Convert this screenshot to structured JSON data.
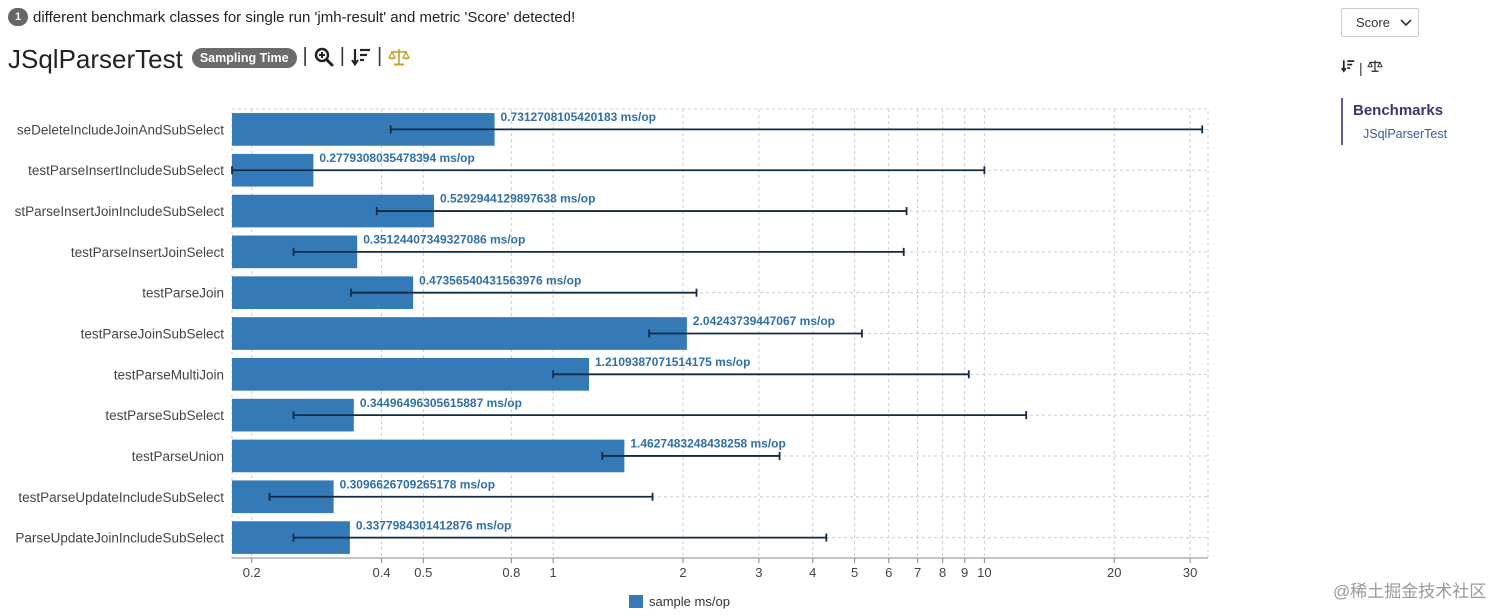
{
  "notice": {
    "count": "1",
    "text": "different benchmark classes for single run 'jmh-result' and metric 'Score' detected!"
  },
  "header": {
    "title": "JSqlParserTest",
    "mode_badge": "Sampling Time",
    "separator": "|"
  },
  "right_panel": {
    "metric_select": "Score",
    "separator": "|",
    "toc_heading": "Benchmarks",
    "toc_items": [
      "JSqlParserTest"
    ]
  },
  "watermark": "@稀土掘金技术社区",
  "colors": {
    "bar": "#337ab7",
    "label": "#2f6fa8",
    "error_bar": "#112a46",
    "grid": "#cccccc"
  },
  "chart_data": {
    "type": "bar",
    "orientation": "horizontal",
    "x_scale": "log",
    "unit": "ms/op",
    "categories": [
      "testParseDeleteIncludeJoinAndSubSelect",
      "testParseInsertIncludeSubSelect",
      "testParseInsertJoinIncludeSubSelect",
      "testParseInsertJoinSelect",
      "testParseJoin",
      "testParseJoinSubSelect",
      "testParseMultiJoin",
      "testParseSubSelect",
      "testParseUnion",
      "testParseUpdateIncludeSubSelect",
      "testParseUpdateJoinIncludeSubSelect"
    ],
    "category_labels_shown": [
      "seDeleteIncludeJoinAndSubSelect",
      "testParseInsertIncludeSubSelect",
      "stParseInsertJoinIncludeSubSelect",
      "testParseInsertJoinSelect",
      "testParseJoin",
      "testParseJoinSubSelect",
      "testParseMultiJoin",
      "testParseSubSelect",
      "testParseUnion",
      "testParseUpdateIncludeSubSelect",
      "ParseUpdateJoinIncludeSubSelect"
    ],
    "series": [
      {
        "name": "sample ms/op",
        "values": [
          0.7312708105420183,
          0.2779308035478394,
          0.5292944129897638,
          0.35124407349327086,
          0.47356540431563976,
          2.04243739447067,
          1.2109387071514175,
          0.34496496305615887,
          1.4627483248438258,
          0.3096626709265178,
          0.3377984301412876
        ],
        "value_labels": [
          "0.7312708105420183 ms/op",
          "0.2779308035478394 ms/op",
          "0.5292944129897638 ms/op",
          "0.35124407349327086 ms/op",
          "0.47356540431563976 ms/op",
          "2.04243739447067 ms/op",
          "1.2109387071514175 ms/op",
          "0.34496496305615887 ms/op",
          "1.4627483248438258 ms/op",
          "0.3096626709265178 ms/op",
          "0.3377984301412876 ms/op"
        ],
        "error_low": [
          0.42,
          0.18,
          0.39,
          0.25,
          0.34,
          1.67,
          1.0,
          0.25,
          1.3,
          0.22,
          0.25
        ],
        "error_high": [
          32.0,
          10.0,
          6.6,
          6.5,
          2.15,
          5.2,
          9.2,
          12.5,
          3.35,
          1.7,
          4.3
        ]
      }
    ],
    "x_ticks": [
      0.2,
      0.4,
      0.5,
      0.8,
      1,
      2,
      3,
      4,
      5,
      6,
      7,
      8,
      9,
      10,
      20,
      30
    ],
    "x_tick_labels": [
      "0.2",
      "0.4",
      "0.5",
      "0.8",
      "1",
      "2",
      "3",
      "4",
      "5",
      "6",
      "7",
      "8",
      "9",
      "10",
      "20",
      "30"
    ],
    "xlim": [
      0.18,
      33
    ],
    "grid": true,
    "legend": {
      "position": "bottom",
      "entries": [
        "sample ms/op"
      ]
    }
  }
}
